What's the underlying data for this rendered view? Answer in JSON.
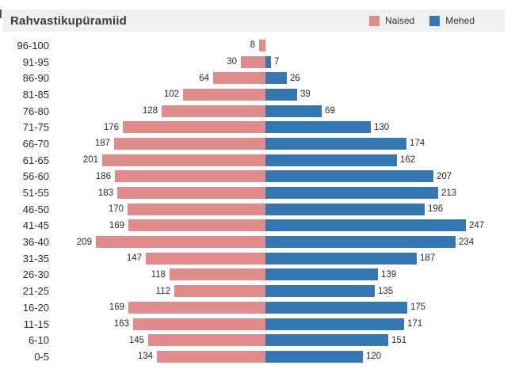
{
  "title": "Rahvastikupüramiid",
  "legend": {
    "naised": {
      "label": "Naised",
      "color": "#e08c8d"
    },
    "mehed": {
      "label": "Mehed",
      "color": "#3577b2"
    }
  },
  "colors": {
    "header_bg": "#f0f0f0",
    "center_line": "#bdbdbd",
    "text": "#2b2b2b"
  },
  "chart_data": {
    "type": "bar",
    "subtype": "population-pyramid",
    "title": "Rahvastikupüramiid",
    "categories": [
      "96-100",
      "91-95",
      "86-90",
      "81-85",
      "76-80",
      "71-75",
      "66-70",
      "61-65",
      "56-60",
      "51-55",
      "46-50",
      "41-45",
      "36-40",
      "31-35",
      "26-30",
      "21-25",
      "16-20",
      "11-15",
      "6-10",
      "0-5"
    ],
    "series": [
      {
        "name": "Naised",
        "side": "left",
        "color": "#e08c8d",
        "values": [
          8,
          30,
          64,
          102,
          128,
          176,
          187,
          201,
          186,
          183,
          170,
          169,
          209,
          147,
          118,
          112,
          169,
          163,
          145,
          134
        ]
      },
      {
        "name": "Mehed",
        "side": "right",
        "color": "#3577b2",
        "values": [
          null,
          7,
          26,
          39,
          69,
          130,
          174,
          162,
          207,
          213,
          196,
          247,
          234,
          187,
          139,
          135,
          175,
          171,
          151,
          120
        ]
      }
    ],
    "value_labels": true,
    "xmax_per_side": 250,
    "grid": false,
    "legend_position": "top-right"
  }
}
